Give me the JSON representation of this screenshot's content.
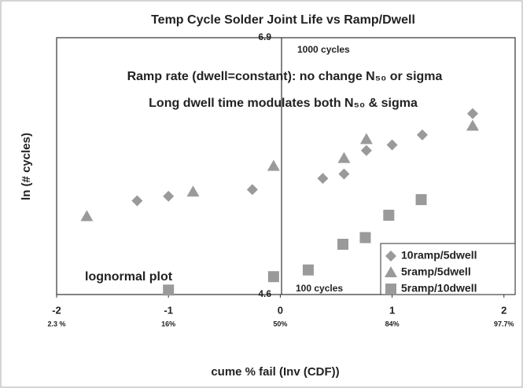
{
  "chart_data": {
    "type": "scatter",
    "title": "Temp Cycle Solder Joint Life vs Ramp/Dwell",
    "annotations": [
      "Ramp rate (dwell=constant): no change N₅₀ or sigma",
      "Long dwell time modulates both N₅₀ & sigma",
      "1000 cycles",
      "100 cycles",
      "lognormal plot"
    ],
    "x_label": "cume % fail (Inv (CDF))",
    "y_label": "ln (# cycles)",
    "xlim": [
      -2,
      2.1
    ],
    "xticks": [
      -2,
      -1,
      0,
      1,
      2
    ],
    "xtick_percent_labels": [
      "2.3 %",
      "16%",
      "50%",
      "84%",
      "97.7%"
    ],
    "ylim": [
      4.6,
      6.9
    ],
    "yticks": [
      4.6,
      6.9
    ],
    "legend": "lower right",
    "series": [
      {
        "name": "10ramp/5dwell",
        "marker": "diamond",
        "color": "#9a9a9a",
        "x": [
          -1.28,
          -1.0,
          -0.25,
          0.38,
          0.57,
          0.77,
          1.0,
          1.27,
          1.72
        ],
        "values": [
          5.44,
          5.48,
          5.54,
          5.64,
          5.68,
          5.89,
          5.94,
          6.03,
          6.22
        ]
      },
      {
        "name": "5ramp/5dwell",
        "marker": "triangle",
        "color": "#9a9a9a",
        "x": [
          -1.73,
          -0.78,
          -0.06,
          0.57,
          0.77,
          1.72
        ],
        "values": [
          5.3,
          5.52,
          5.75,
          5.82,
          5.99,
          6.11
        ]
      },
      {
        "name": "5ramp/10dwell",
        "marker": "square",
        "color": "#9a9a9a",
        "x": [
          -1.0,
          -0.06,
          0.25,
          0.56,
          0.76,
          0.97,
          1.26
        ],
        "values": [
          4.64,
          4.76,
          4.82,
          5.05,
          5.11,
          5.31,
          5.45
        ]
      }
    ]
  }
}
